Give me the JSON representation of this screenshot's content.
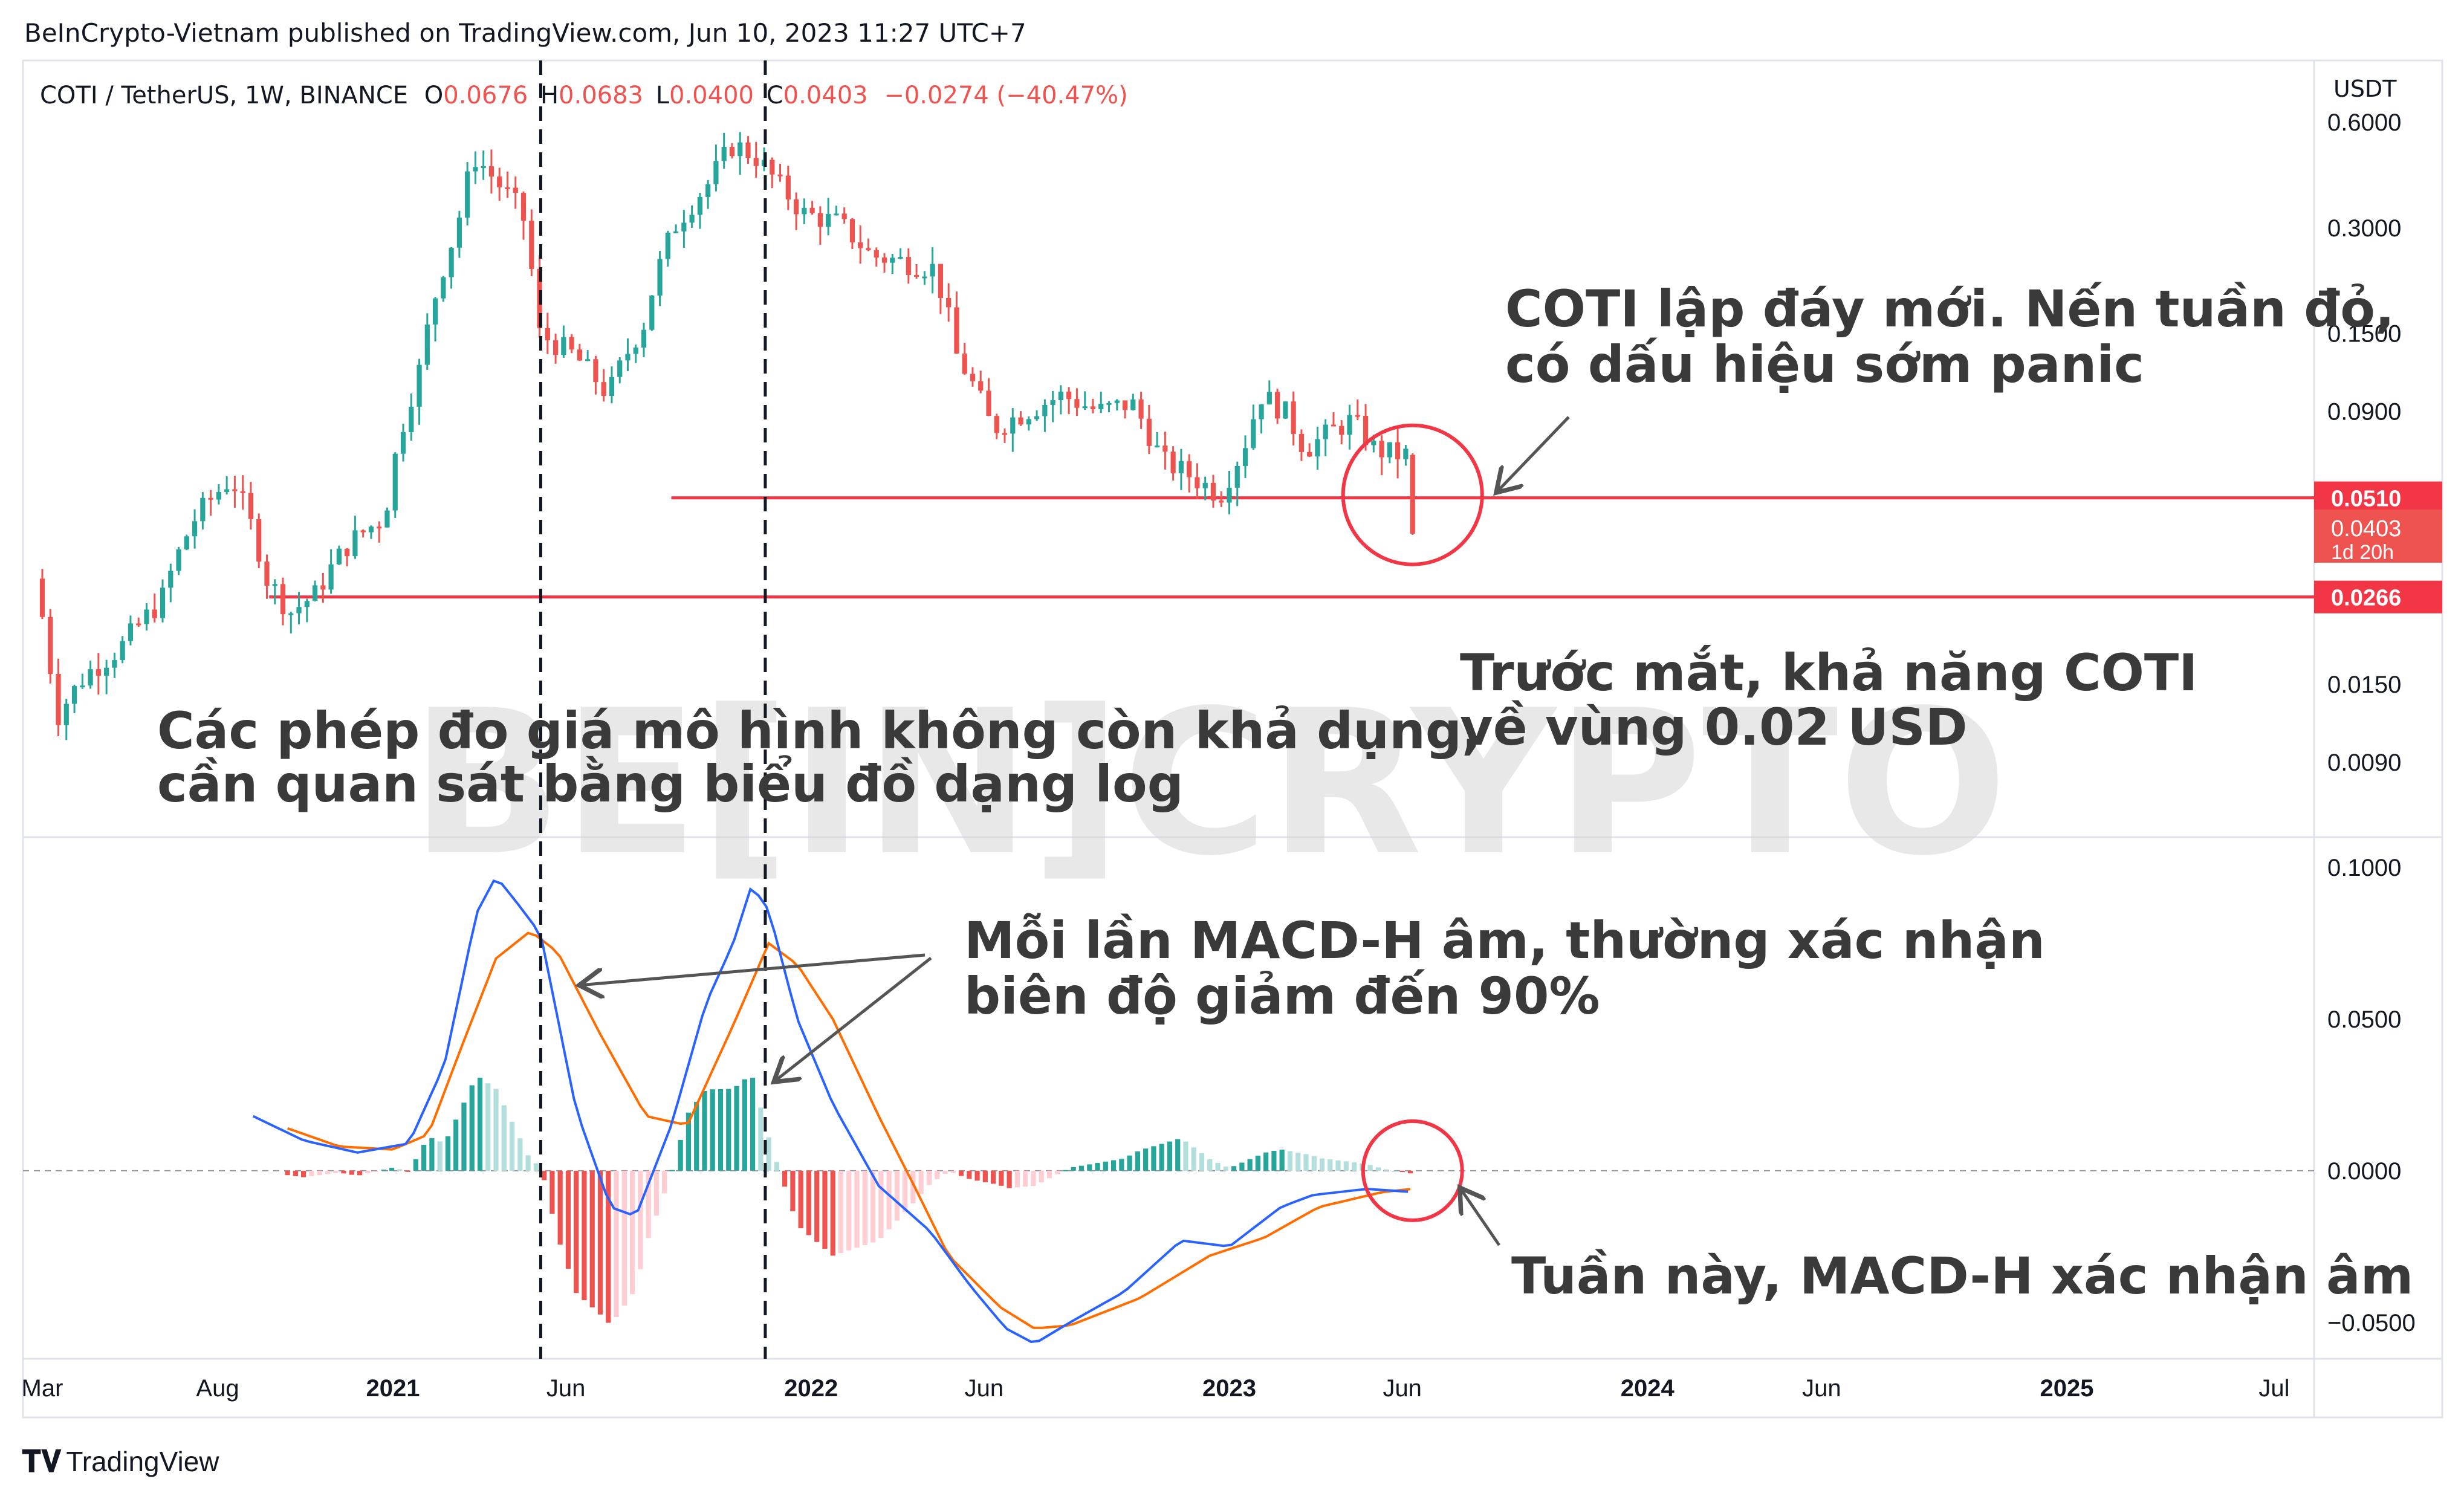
{
  "header": {
    "publisher": "BeInCrypto-Vietnam published on TradingView.com, Jun 10, 2023 11:27 UTC+7",
    "symbol": "COTI / TetherUS, 1W, BINANCE",
    "o_label": "O",
    "o_value": "0.0676",
    "h_label": "H",
    "h_value": "0.0683",
    "l_label": "L",
    "l_value": "0.0400",
    "c_label": "C",
    "c_value": "0.0403",
    "change": "−0.0274 (−40.47%)"
  },
  "footer": {
    "brand": "TradingView"
  },
  "watermark": "BE[IN]CRYPTO",
  "annotations": {
    "new_low": [
      "COTI lập đáy mới. Nến tuần đỏ,",
      "có dấu hiệu sớm panic"
    ],
    "target": [
      "Trước mắt, khả năng COTI",
      "về vùng 0.02 USD"
    ],
    "log_note": [
      "Các phép đo giá mô hình không còn khả dụng,",
      "cần quan sát bằng biểu đồ dạng log"
    ],
    "macd_note": [
      "Mỗi lần MACD-H âm, thường xác nhận",
      "biên độ giảm đến 90%"
    ],
    "this_week": [
      "Tuần này, MACD-H xác nhận âm"
    ]
  },
  "colors": {
    "up": "#26a69a",
    "down": "#ef5350",
    "hist_up_strong": "#26a69a",
    "hist_up_weak": "#b2dfdb",
    "hist_down_strong": "#ef5350",
    "hist_down_weak": "#ffcdd2",
    "macd": "#2962ff",
    "signal": "#ff6d00",
    "level_line": "#f23645",
    "grid": "#e0e3eb",
    "text": "#131722",
    "annotation": "#3a3a3a"
  },
  "chart_data": {
    "type": "candlestick",
    "interval": "1W",
    "currency": "USDT",
    "price_scale": "log",
    "price_ylim": [
      0.0055,
      0.9
    ],
    "price_ticks": [
      "0.6000",
      "0.3000",
      "0.1500",
      "0.0900",
      "0.0150",
      "0.0090"
    ],
    "price_tick_values": [
      0.6,
      0.3,
      0.15,
      0.09,
      0.015,
      0.009
    ],
    "x_ticks": [
      "Mar",
      "Aug",
      "2021",
      "Jun",
      "2022",
      "Jun",
      "2023",
      "Jun",
      "2024",
      "Jun",
      "2025",
      "Jul"
    ],
    "x_tick_dates": [
      "2020-03-01",
      "2020-08-01",
      "2021-01-01",
      "2021-06-01",
      "2022-01-01",
      "2022-06-01",
      "2023-01-01",
      "2023-06-01",
      "2024-01-01",
      "2024-06-01",
      "2025-01-01",
      "2025-07-01"
    ],
    "price_anchors": [
      [
        "2020-03-01",
        0.03
      ],
      [
        "2020-03-20",
        0.012
      ],
      [
        "2020-04-15",
        0.016
      ],
      [
        "2020-05-15",
        0.019
      ],
      [
        "2020-06-20",
        0.026
      ],
      [
        "2020-07-20",
        0.045
      ],
      [
        "2020-08-20",
        0.058
      ],
      [
        "2020-09-20",
        0.03
      ],
      [
        "2020-10-10",
        0.024
      ],
      [
        "2020-11-01",
        0.027
      ],
      [
        "2020-12-01",
        0.038
      ],
      [
        "2021-01-01",
        0.045
      ],
      [
        "2021-02-01",
        0.12
      ],
      [
        "2021-03-05",
        0.3
      ],
      [
        "2021-03-20",
        0.48
      ],
      [
        "2021-04-10",
        0.4
      ],
      [
        "2021-05-01",
        0.33
      ],
      [
        "2021-05-15",
        0.15
      ],
      [
        "2021-06-15",
        0.13
      ],
      [
        "2021-07-15",
        0.1
      ],
      [
        "2021-08-15",
        0.16
      ],
      [
        "2021-09-10",
        0.3
      ],
      [
        "2021-10-10",
        0.4
      ],
      [
        "2021-11-01",
        0.52
      ],
      [
        "2021-11-20",
        0.48
      ],
      [
        "2021-12-10",
        0.4
      ],
      [
        "2022-01-01",
        0.33
      ],
      [
        "2022-02-01",
        0.31
      ],
      [
        "2022-03-01",
        0.25
      ],
      [
        "2022-04-01",
        0.24
      ],
      [
        "2022-04-25",
        0.23
      ],
      [
        "2022-05-15",
        0.13
      ],
      [
        "2022-06-15",
        0.08
      ],
      [
        "2022-07-15",
        0.09
      ],
      [
        "2022-08-15",
        0.1
      ],
      [
        "2022-09-15",
        0.09
      ],
      [
        "2022-10-15",
        0.095
      ],
      [
        "2022-11-10",
        0.065
      ],
      [
        "2022-12-01",
        0.06
      ],
      [
        "2022-12-31",
        0.052
      ],
      [
        "2023-01-20",
        0.07
      ],
      [
        "2023-02-05",
        0.1
      ],
      [
        "2023-02-25",
        0.09
      ],
      [
        "2023-03-15",
        0.07
      ],
      [
        "2023-04-10",
        0.08
      ],
      [
        "2023-04-25",
        0.085
      ],
      [
        "2023-05-15",
        0.07
      ],
      [
        "2023-06-05",
        0.0676
      ]
    ],
    "last_candle": {
      "date": "2023-06-10",
      "open": 0.0676,
      "high": 0.0683,
      "low": 0.04,
      "close": 0.0403
    },
    "levels": [
      {
        "value": 0.051,
        "label": "0.0510",
        "start": "2021-09-01"
      },
      {
        "value": 0.0266,
        "label": "0.0266",
        "start": "2020-09-15"
      }
    ],
    "current_price_label": "0.0403",
    "countdown_label": "1d 20h",
    "vertical_markers": [
      "2021-05-10",
      "2021-11-22"
    ],
    "circles": [
      {
        "pane": "price",
        "date": "2023-06-10",
        "value": 0.052
      },
      {
        "pane": "macd",
        "date": "2023-06-10",
        "value": 0.0
      }
    ],
    "macd": {
      "ylim": [
        -0.062,
        0.11
      ],
      "ticks": [
        "0.1000",
        "0.0500",
        "0.0000",
        "−0.0500"
      ],
      "tick_values": [
        0.1,
        0.05,
        0.0,
        -0.05
      ],
      "macd_anchors": [
        [
          "2020-09-01",
          0.018
        ],
        [
          "2020-10-15",
          0.01
        ],
        [
          "2020-12-01",
          0.006
        ],
        [
          "2021-01-15",
          0.009
        ],
        [
          "2021-02-15",
          0.035
        ],
        [
          "2021-03-15",
          0.085
        ],
        [
          "2021-04-01",
          0.097
        ],
        [
          "2021-04-20",
          0.088
        ],
        [
          "2021-05-10",
          0.078
        ],
        [
          "2021-06-10",
          0.02
        ],
        [
          "2021-07-10",
          -0.012
        ],
        [
          "2021-08-01",
          -0.015
        ],
        [
          "2021-09-01",
          0.015
        ],
        [
          "2021-10-01",
          0.055
        ],
        [
          "2021-10-25",
          0.075
        ],
        [
          "2021-11-10",
          0.094
        ],
        [
          "2021-11-25",
          0.086
        ],
        [
          "2021-12-20",
          0.05
        ],
        [
          "2022-01-20",
          0.022
        ],
        [
          "2022-03-01",
          -0.005
        ],
        [
          "2022-04-15",
          -0.02
        ],
        [
          "2022-05-20",
          -0.038
        ],
        [
          "2022-06-20",
          -0.052
        ],
        [
          "2022-07-15",
          -0.057
        ],
        [
          "2022-08-15",
          -0.05
        ],
        [
          "2022-10-01",
          -0.04
        ],
        [
          "2022-11-20",
          -0.023
        ],
        [
          "2023-01-01",
          -0.025
        ],
        [
          "2023-02-15",
          -0.012
        ],
        [
          "2023-03-15",
          -0.008
        ],
        [
          "2023-05-01",
          -0.006
        ],
        [
          "2023-06-10",
          -0.007
        ]
      ],
      "signal_anchors": [
        [
          "2020-10-01",
          0.014
        ],
        [
          "2020-11-15",
          0.008
        ],
        [
          "2021-01-01",
          0.007
        ],
        [
          "2021-02-01",
          0.012
        ],
        [
          "2021-03-01",
          0.04
        ],
        [
          "2021-04-01",
          0.07
        ],
        [
          "2021-05-01",
          0.079
        ],
        [
          "2021-05-25",
          0.072
        ],
        [
          "2021-07-01",
          0.045
        ],
        [
          "2021-08-10",
          0.018
        ],
        [
          "2021-09-15",
          0.015
        ],
        [
          "2021-10-25",
          0.048
        ],
        [
          "2021-11-25",
          0.075
        ],
        [
          "2021-12-20",
          0.068
        ],
        [
          "2022-01-20",
          0.05
        ],
        [
          "2022-03-01",
          0.018
        ],
        [
          "2022-04-01",
          -0.005
        ],
        [
          "2022-05-01",
          -0.028
        ],
        [
          "2022-06-15",
          -0.045
        ],
        [
          "2022-07-15",
          -0.052
        ],
        [
          "2022-08-15",
          -0.051
        ],
        [
          "2022-10-15",
          -0.042
        ],
        [
          "2022-12-15",
          -0.028
        ],
        [
          "2023-02-01",
          -0.022
        ],
        [
          "2023-03-20",
          -0.012
        ],
        [
          "2023-05-15",
          -0.007
        ],
        [
          "2023-06-10",
          -0.006
        ]
      ]
    }
  }
}
